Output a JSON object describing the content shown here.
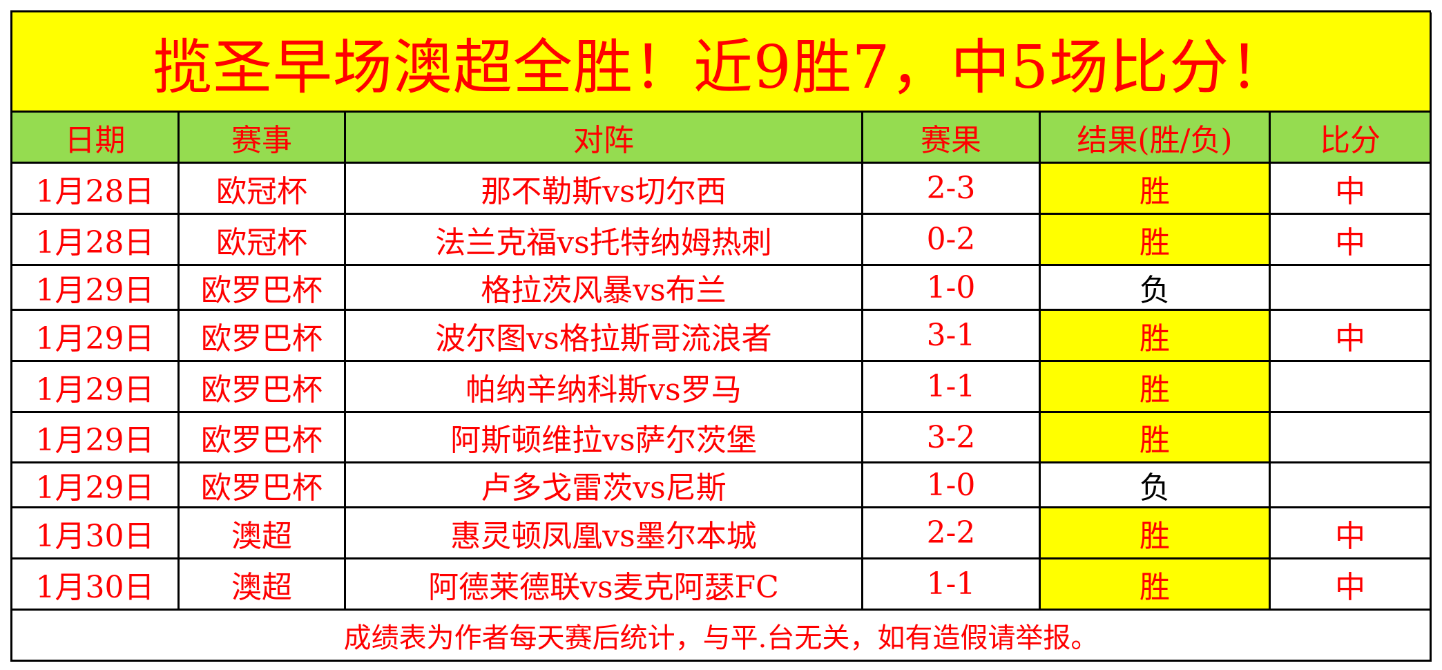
{
  "title": "揽圣早场澳超全胜！近9胜7，中5场比分！",
  "headers": [
    "日期",
    "赛事",
    "对阵",
    "赛果",
    "结果(胜/负)",
    "比分"
  ],
  "rows": [
    {
      "date": "1月28日",
      "league": "欧冠杯",
      "match": "那不勒斯vs切尔西",
      "score": "2-3",
      "result": "胜",
      "exact": "中"
    },
    {
      "date": "1月28日",
      "league": "欧冠杯",
      "match": "法兰克福vs托特纳姆热刺",
      "score": "0-2",
      "result": "胜",
      "exact": "中"
    },
    {
      "date": "1月29日",
      "league": "欧罗巴杯",
      "match": "格拉茨风暴vs布兰",
      "score": "1-0",
      "result": "负",
      "exact": ""
    },
    {
      "date": "1月29日",
      "league": "欧罗巴杯",
      "match": "波尔图vs格拉斯哥流浪者",
      "score": "3-1",
      "result": "胜",
      "exact": "中"
    },
    {
      "date": "1月29日",
      "league": "欧罗巴杯",
      "match": "帕纳辛纳科斯vs罗马",
      "score": "1-1",
      "result": "胜",
      "exact": ""
    },
    {
      "date": "1月29日",
      "league": "欧罗巴杯",
      "match": "阿斯顿维拉vs萨尔茨堡",
      "score": "3-2",
      "result": "胜",
      "exact": ""
    },
    {
      "date": "1月29日",
      "league": "欧罗巴杯",
      "match": "卢多戈雷茨vs尼斯",
      "score": "1-0",
      "result": "负",
      "exact": ""
    },
    {
      "date": "1月30日",
      "league": "澳超",
      "match": "惠灵顿凤凰vs墨尔本城",
      "score": "2-2",
      "result": "胜",
      "exact": "中"
    },
    {
      "date": "1月30日",
      "league": "澳超",
      "match": "阿德莱德联vs麦克阿瑟FC",
      "score": "1-1",
      "result": "胜",
      "exact": "中"
    }
  ],
  "footer": "成绩表为作者每天赛后统计，与平.台无关，如有造假请举报。",
  "colors": {
    "title_bg": "#ffff00",
    "header_bg": "#95dc50",
    "win_bg": "#ffff00",
    "text": "#ff0000",
    "lose_text": "#000000"
  }
}
